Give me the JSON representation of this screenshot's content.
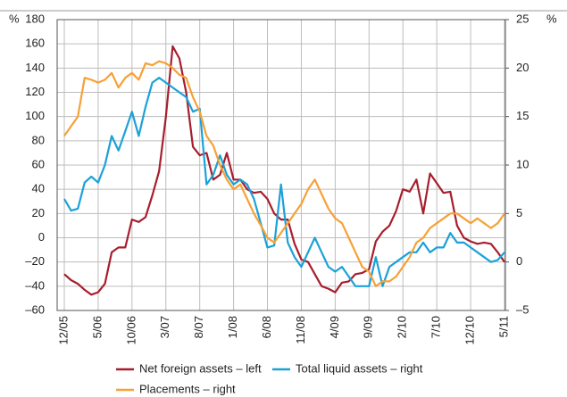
{
  "chart_data": {
    "type": "line",
    "yunit": "%",
    "y2unit": "%",
    "categories": [
      "12/05",
      null,
      null,
      null,
      null,
      "5/06",
      null,
      null,
      null,
      null,
      "10/06",
      null,
      null,
      null,
      null,
      "3/07",
      null,
      null,
      null,
      null,
      "8/07",
      null,
      null,
      null,
      null,
      "1/08",
      null,
      null,
      null,
      null,
      "6/08",
      null,
      null,
      null,
      null,
      "11/08",
      null,
      null,
      null,
      null,
      "4/09",
      null,
      null,
      null,
      null,
      "9/09",
      null,
      null,
      null,
      null,
      "2/10",
      null,
      null,
      null,
      null,
      "7/10",
      null,
      null,
      null,
      null,
      "12/10",
      null,
      null,
      null,
      null,
      "5/11"
    ],
    "series": [
      {
        "name": "Net foreign assets – left",
        "color": "#a71e2d",
        "axis": "y",
        "values": [
          -30,
          -35,
          -38,
          -43,
          -47,
          -45,
          -38,
          -12,
          -8,
          -8,
          15,
          13,
          17,
          35,
          55,
          100,
          158,
          148,
          120,
          75,
          68,
          70,
          48,
          52,
          70,
          48,
          48,
          40,
          37,
          38,
          32,
          20,
          15,
          15,
          -5,
          -18,
          -20,
          -30,
          -40,
          -42,
          -45,
          -37,
          -36,
          -30,
          -29,
          -26,
          -3,
          5,
          10,
          22,
          40,
          38,
          48,
          20,
          53,
          45,
          37,
          38,
          10,
          0,
          -3,
          -5,
          -4,
          -5,
          -12,
          -20
        ]
      },
      {
        "name": "Total liquid assets – right",
        "color": "#1ba1d8",
        "axis": "y2",
        "values": [
          6.5,
          5.3,
          5.5,
          8.2,
          8.8,
          8.2,
          10,
          13,
          11.5,
          13.5,
          15.5,
          13,
          16,
          18.5,
          19,
          18.5,
          18,
          17.5,
          17,
          15.5,
          15.8,
          8,
          9,
          11,
          9,
          8,
          8.5,
          8,
          6.5,
          4,
          1.5,
          1.7,
          8,
          2,
          0.5,
          -0.5,
          1,
          2.5,
          1,
          -0.5,
          -1,
          -0.5,
          -1.5,
          -2.5,
          -2.5,
          -2.5,
          0.5,
          -2.5,
          -0.5,
          0,
          0.5,
          1,
          1,
          2,
          1,
          1.5,
          1.5,
          3,
          2,
          2,
          1.5,
          1,
          0.5,
          0,
          0.2,
          1
        ]
      },
      {
        "name": "Placements – right",
        "color": "#f6a136",
        "axis": "y2",
        "values": [
          13,
          14,
          15,
          19,
          18.8,
          18.5,
          18.8,
          19.5,
          18,
          19,
          19.5,
          18.8,
          20.5,
          20.3,
          20.7,
          20.5,
          20,
          19.3,
          19,
          17,
          15.5,
          13,
          12,
          10,
          8.5,
          7.5,
          8,
          6.5,
          5,
          3.8,
          2.5,
          2,
          3,
          4,
          5,
          6,
          7.5,
          8.5,
          7,
          5.5,
          4.5,
          4,
          2.5,
          1,
          -0.5,
          -1,
          -2.5,
          -2,
          -2,
          -1.5,
          -0.5,
          0.5,
          2,
          2.5,
          3.5,
          4,
          4.5,
          5,
          5,
          4.5,
          4,
          4.5,
          4,
          3.5,
          4,
          5
        ]
      }
    ],
    "ylim": [
      -60,
      180
    ],
    "yticks": [
      180,
      160,
      140,
      120,
      100,
      80,
      60,
      40,
      20,
      0,
      {
        "value": -20,
        "label": "–20"
      },
      {
        "value": -40,
        "label": "–40"
      },
      {
        "value": -60,
        "label": "–60"
      }
    ],
    "y2lim": [
      -5,
      25
    ],
    "y2ticks": [
      25,
      20,
      15,
      10,
      5,
      0,
      {
        "value": -5,
        "label": "–5"
      }
    ],
    "grid": true
  }
}
